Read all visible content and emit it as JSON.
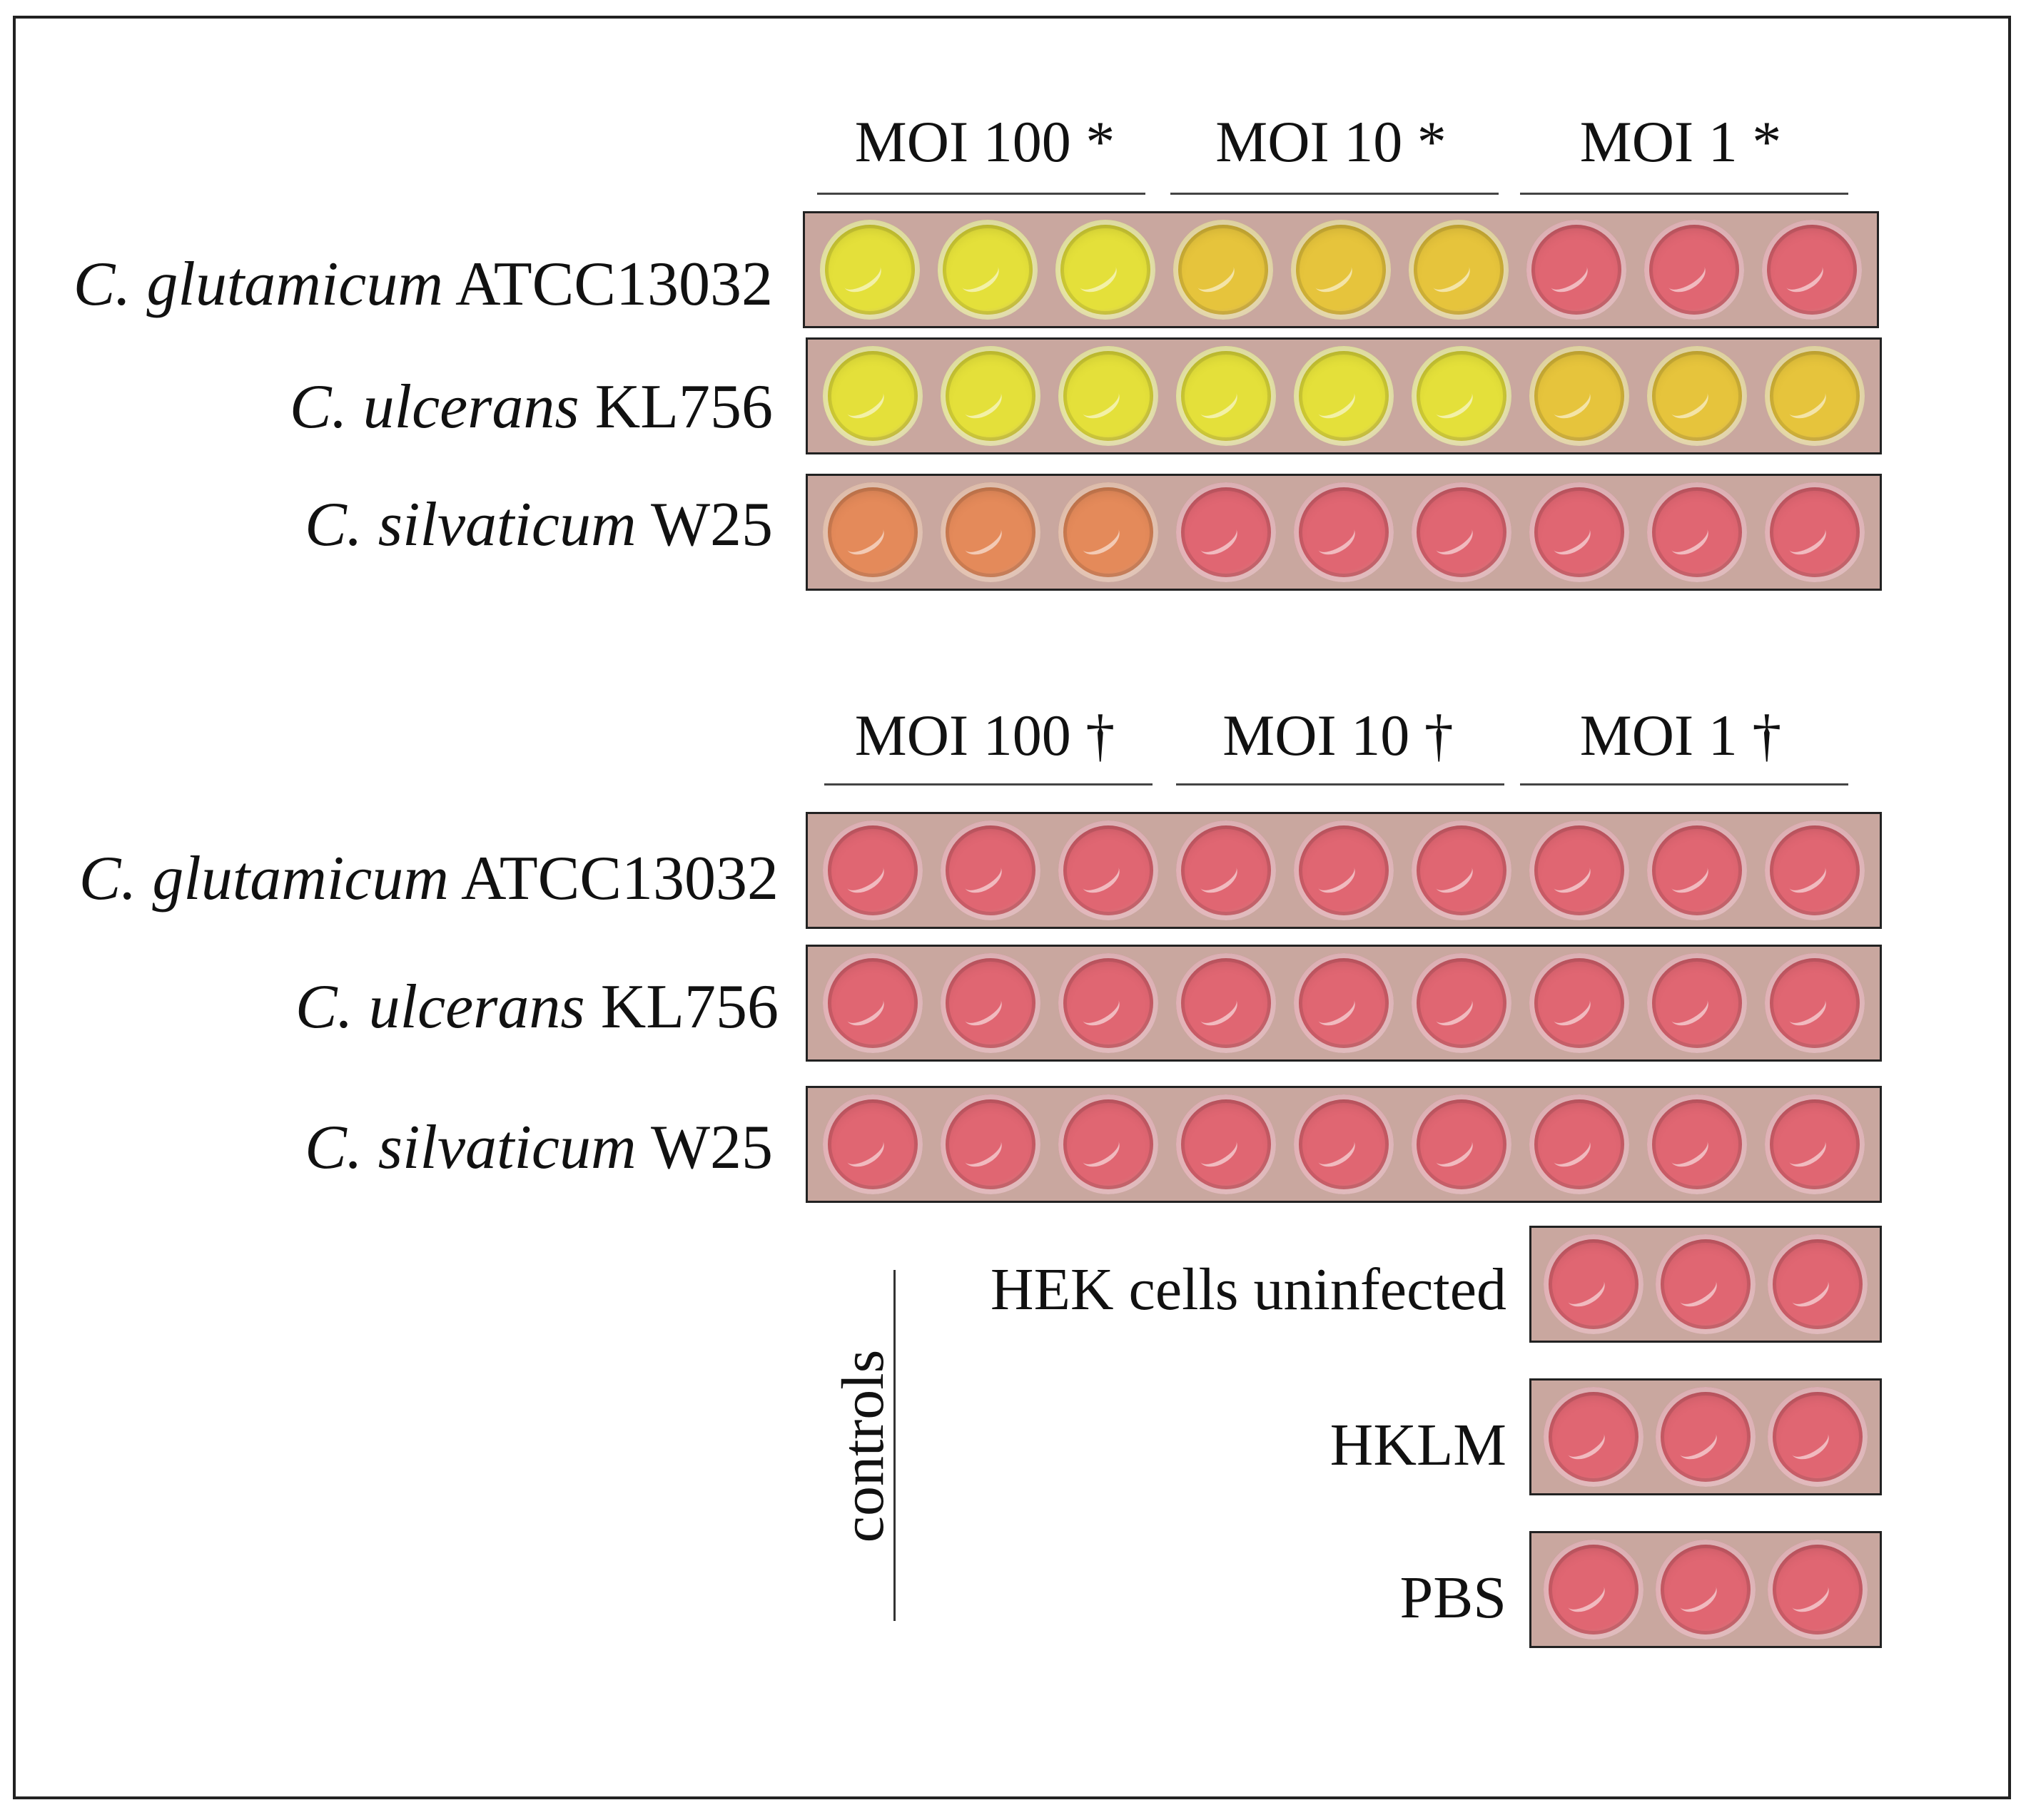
{
  "colors": {
    "yellow": "#e4e03a",
    "yellow_orange": "#e6c43c",
    "orange": "#e48a5a",
    "pink": "#e06672",
    "plate_background": "#c9a79f"
  },
  "panels": [
    {
      "headers": [
        "MOI 100 *",
        "MOI 10 *",
        "MOI 1 *"
      ],
      "rows": [
        {
          "species": "C. glutamicum",
          "strain": "ATCC13032",
          "wells": [
            "yellow",
            "yellow",
            "yellow",
            "yellow_orange",
            "yellow_orange",
            "yellow_orange",
            "pink",
            "pink",
            "pink"
          ]
        },
        {
          "species": "C. ulcerans",
          "strain": "KL756",
          "wells": [
            "yellow",
            "yellow",
            "yellow",
            "yellow",
            "yellow",
            "yellow",
            "yellow_orange",
            "yellow_orange",
            "yellow_orange"
          ]
        },
        {
          "species": "C. silvaticum",
          "strain": "W25",
          "wells": [
            "orange",
            "orange",
            "orange",
            "pink",
            "pink",
            "pink",
            "pink",
            "pink",
            "pink"
          ]
        }
      ]
    },
    {
      "headers": [
        "MOI 100 †",
        "MOI 10 †",
        "MOI 1 †"
      ],
      "rows": [
        {
          "species": "C. glutamicum",
          "strain": "ATCC13032",
          "wells": [
            "pink",
            "pink",
            "pink",
            "pink",
            "pink",
            "pink",
            "pink",
            "pink",
            "pink"
          ]
        },
        {
          "species": "C. ulcerans",
          "strain": "KL756",
          "wells": [
            "pink",
            "pink",
            "pink",
            "pink",
            "pink",
            "pink",
            "pink",
            "pink",
            "pink"
          ]
        },
        {
          "species": "C. silvaticum",
          "strain": "W25",
          "wells": [
            "pink",
            "pink",
            "pink",
            "pink",
            "pink",
            "pink",
            "pink",
            "pink",
            "pink"
          ]
        }
      ]
    }
  ],
  "controls": {
    "title": "controls",
    "rows": [
      {
        "label": "HEK cells uninfected",
        "wells": [
          "pink",
          "pink",
          "pink"
        ]
      },
      {
        "label": "HKLM",
        "wells": [
          "pink",
          "pink",
          "pink"
        ]
      },
      {
        "label": "PBS",
        "wells": [
          "pink",
          "pink",
          "pink"
        ]
      }
    ]
  }
}
